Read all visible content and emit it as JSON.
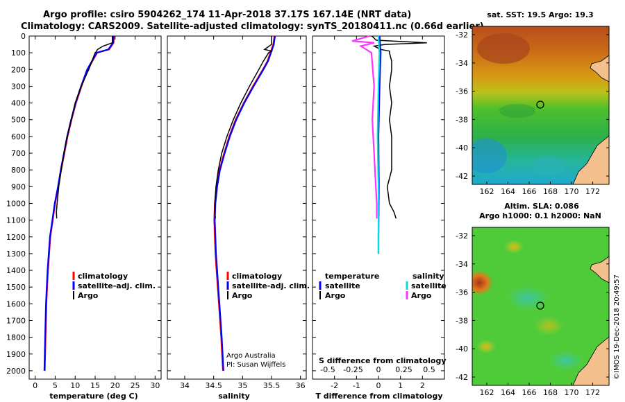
{
  "title": {
    "line1": "Argo profile: csiro 5904262_174 11-Apr-2018 37.17S 167.14E (NRT data)",
    "line2": "Climatology: CARS2009. Satellite-adjusted climatology: synTS_20180411.nc (0.66d earlier)"
  },
  "depth_axis": {
    "ylim": [
      0,
      2050
    ],
    "ticks": [
      0,
      100,
      200,
      300,
      400,
      500,
      600,
      700,
      800,
      900,
      1000,
      1100,
      1200,
      1300,
      1400,
      1500,
      1600,
      1700,
      1800,
      1900,
      2000
    ],
    "tick_labels": [
      "0",
      "100",
      "200",
      "300",
      "400",
      "500",
      "600",
      "700",
      "800",
      "900",
      "1000",
      "1100",
      "1200",
      "1300",
      "1400",
      "1500",
      "1600",
      "1700",
      "1800",
      "1900",
      "2000"
    ]
  },
  "chart_data": [
    {
      "type": "line",
      "id": "temperature",
      "xlabel": "temperature (deg C)",
      "xlim": [
        -1.5,
        31.5
      ],
      "xticks": [
        0,
        5,
        10,
        15,
        20,
        25,
        30
      ],
      "xtick_labels": [
        "0",
        "5",
        "10",
        "15",
        "20",
        "25",
        "30"
      ],
      "legend": [
        "climatology",
        "satellite-adj. clim.",
        "Argo"
      ],
      "series": [
        {
          "name": "climatology",
          "color": "#ff0000",
          "depth": [
            0,
            40,
            80,
            100,
            150,
            200,
            300,
            400,
            500,
            600,
            700,
            800,
            900,
            1000,
            1100,
            1200,
            1300,
            1400,
            1500,
            1600,
            1800,
            2000
          ],
          "values": [
            19.7,
            19.6,
            18.5,
            15.5,
            14.3,
            13.2,
            11.6,
            10.2,
            9.1,
            8.1,
            7.3,
            6.5,
            5.8,
            5.0,
            4.4,
            3.8,
            3.5,
            3.2,
            3.0,
            2.8,
            2.6,
            2.4
          ]
        },
        {
          "name": "satellite-adj. clim.",
          "color": "#0000ff",
          "depth": [
            0,
            40,
            80,
            100,
            150,
            200,
            300,
            400,
            500,
            600,
            700,
            800,
            900,
            1000,
            1100,
            1200,
            1300,
            1400,
            1500,
            1600,
            1800,
            2000
          ],
          "values": [
            19.6,
            19.5,
            18.3,
            15.4,
            14.2,
            13.0,
            11.5,
            10.1,
            9.0,
            8.0,
            7.2,
            6.4,
            5.7,
            4.9,
            4.3,
            3.7,
            3.4,
            3.1,
            2.9,
            2.7,
            2.5,
            2.3
          ]
        },
        {
          "name": "Argo",
          "color": "#000000",
          "depth": [
            0,
            40,
            60,
            80,
            95,
            100,
            150,
            200,
            300,
            400,
            500,
            600,
            700,
            800,
            900,
            1000,
            1050,
            1090
          ],
          "values": [
            19.3,
            19.3,
            17.0,
            15.6,
            15.2,
            15.0,
            14.2,
            13.4,
            11.5,
            10.0,
            9.0,
            8.0,
            7.2,
            6.5,
            5.9,
            5.5,
            5.3,
            5.4
          ]
        }
      ]
    },
    {
      "type": "line",
      "id": "salinity",
      "xlabel": "salinity",
      "xlim": [
        33.7,
        36.1
      ],
      "xticks": [
        34,
        34.5,
        35,
        35.5,
        36
      ],
      "xtick_labels": [
        "34",
        "34.5",
        "35",
        "35.5",
        "36"
      ],
      "legend": [
        "climatology",
        "satellite-adj. clim.",
        "Argo"
      ],
      "annotation": [
        "Argo Australia",
        "PI: Susan Wijffels"
      ],
      "series": [
        {
          "name": "climatology",
          "color": "#ff0000",
          "depth": [
            0,
            50,
            100,
            150,
            200,
            300,
            400,
            500,
            600,
            700,
            800,
            900,
            1000,
            1100,
            1200,
            1300,
            1400,
            1500,
            1600,
            1800,
            2000
          ],
          "values": [
            35.55,
            35.53,
            35.48,
            35.43,
            35.35,
            35.18,
            35.02,
            34.88,
            34.77,
            34.68,
            34.6,
            34.55,
            34.52,
            34.51,
            34.52,
            34.53,
            34.55,
            34.57,
            34.59,
            34.63,
            34.66
          ]
        },
        {
          "name": "satellite-adj. clim.",
          "color": "#0000ff",
          "depth": [
            0,
            50,
            100,
            150,
            200,
            300,
            400,
            500,
            600,
            700,
            800,
            900,
            1000,
            1100,
            1200,
            1300,
            1400,
            1500,
            1600,
            1800,
            2000
          ],
          "values": [
            35.56,
            35.54,
            35.49,
            35.44,
            35.36,
            35.19,
            35.03,
            34.89,
            34.78,
            34.69,
            34.61,
            34.56,
            34.53,
            34.52,
            34.53,
            34.54,
            34.56,
            34.58,
            34.6,
            34.64,
            34.67
          ]
        },
        {
          "name": "Argo",
          "color": "#000000",
          "depth": [
            0,
            50,
            80,
            90,
            100,
            150,
            200,
            300,
            400,
            500,
            600,
            700,
            800,
            900,
            1000,
            1050,
            1090
          ],
          "values": [
            35.5,
            35.5,
            35.38,
            35.5,
            35.45,
            35.36,
            35.28,
            35.12,
            34.97,
            34.84,
            34.73,
            34.64,
            34.58,
            34.54,
            34.52,
            34.52,
            34.53
          ]
        }
      ]
    },
    {
      "type": "line",
      "id": "difference",
      "xlabel": "T difference from climatology",
      "xlabel_top": "S difference from climatology",
      "xlim": [
        -3,
        3
      ],
      "xticks": [
        -2,
        -1,
        0,
        1,
        2
      ],
      "xtick_labels": [
        "-2",
        "-1",
        "0",
        "1",
        "2"
      ],
      "top_ticks": [
        -0.5,
        -0.25,
        0,
        0.25,
        0.5
      ],
      "top_tick_labels": [
        "-0.5",
        "-0.25",
        "0",
        "0.25",
        "0.5"
      ],
      "legend_headers": [
        "temperature",
        "salinity"
      ],
      "legend": [
        "satellite",
        "Argo",
        "satellite",
        "Argo"
      ],
      "series": [
        {
          "name": "T satellite",
          "color": "#0000ff",
          "depth": [
            0,
            100,
            300,
            600,
            900,
            1200,
            1300
          ],
          "values": [
            0.05,
            0.1,
            0.05,
            0.0,
            0.02,
            0.0,
            0.0
          ]
        },
        {
          "name": "T Argo",
          "color": "#000000",
          "depth": [
            0,
            25,
            40,
            50,
            60,
            80,
            90,
            100,
            150,
            200,
            300,
            400,
            500,
            600,
            700,
            800,
            900,
            1000,
            1050,
            1090
          ],
          "values": [
            -0.3,
            -0.1,
            2.2,
            0.3,
            -0.2,
            0.1,
            0.5,
            0.5,
            0.6,
            0.6,
            0.5,
            0.6,
            0.5,
            0.6,
            0.6,
            0.6,
            0.4,
            0.5,
            0.7,
            0.8
          ]
        },
        {
          "name": "S satellite",
          "color": "#00dddd",
          "depth": [
            0,
            100,
            300,
            600,
            900,
            1100,
            1300
          ],
          "values": [
            0.0,
            0.01,
            0.0,
            -0.01,
            0.0,
            0.0,
            0.0
          ]
        },
        {
          "name": "S Argo",
          "color": "#ff33ff",
          "depth": [
            0,
            30,
            40,
            60,
            100,
            300,
            500,
            700,
            900,
            1000,
            1090
          ],
          "values": [
            -0.1,
            -0.3,
            -0.05,
            -0.2,
            -0.08,
            -0.05,
            -0.07,
            -0.05,
            -0.03,
            -0.02,
            -0.02
          ]
        }
      ]
    }
  ],
  "maps": [
    {
      "id": "sst",
      "title_lines": [
        "sat. SST: 19.5 Argo: 19.3"
      ],
      "lat_ticks": [
        "-32",
        "-34",
        "-36",
        "-38",
        "-40",
        "-42"
      ],
      "lon_ticks": [
        "162",
        "164",
        "166",
        "168",
        "170",
        "172"
      ]
    },
    {
      "id": "sla",
      "title_lines": [
        "Altim. SLA: 0.086",
        "Argo h1000: 0.1 h2000: NaN"
      ],
      "lat_ticks": [
        "-32",
        "-34",
        "-36",
        "-38",
        "-40",
        "-42"
      ],
      "lon_ticks": [
        "162",
        "164",
        "166",
        "168",
        "170",
        "172"
      ]
    }
  ],
  "credit": "©IMOS 19-Dec-2018 20:49:57"
}
